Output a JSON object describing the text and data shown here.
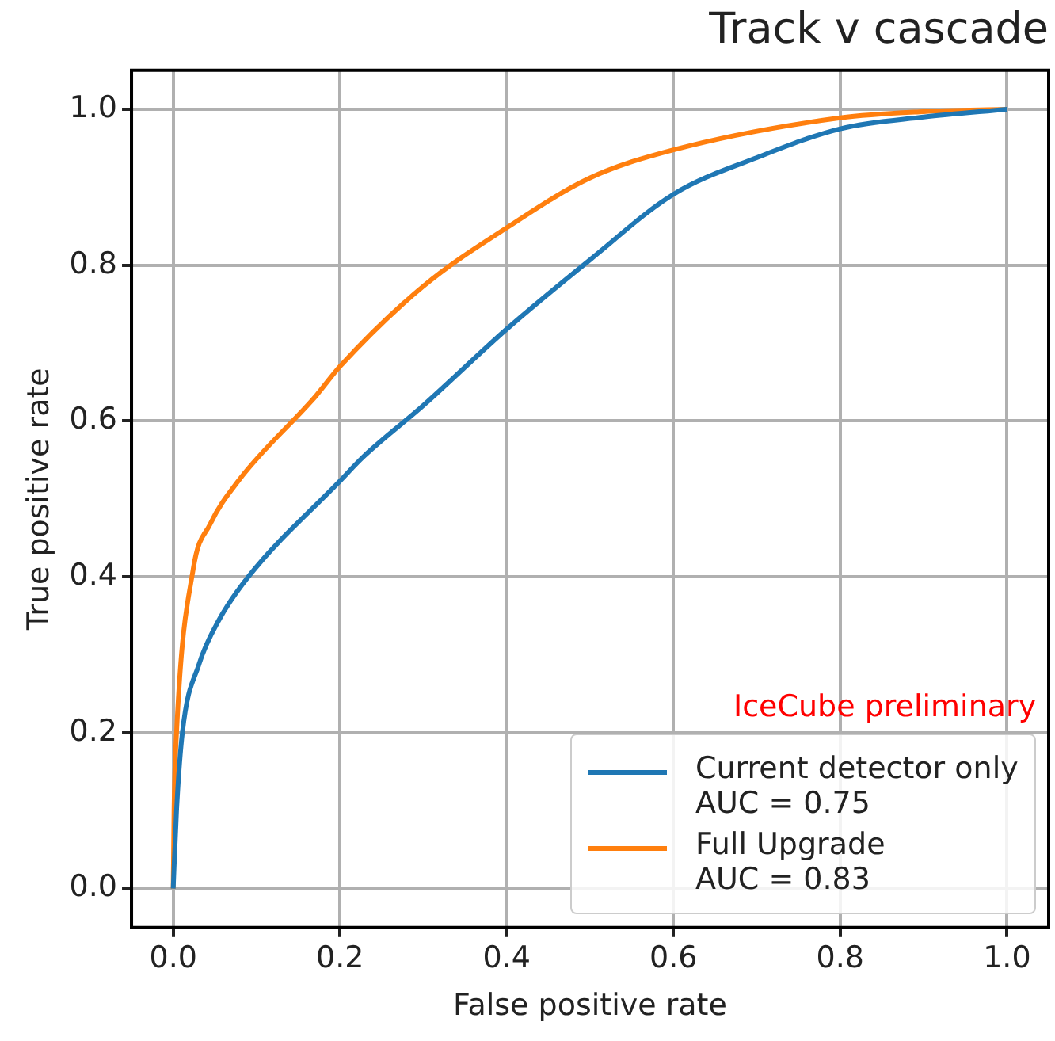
{
  "chart_data": {
    "type": "line",
    "title": "Track v cascade",
    "xlabel": "False positive rate",
    "ylabel": "True positive rate",
    "xlim": [
      -0.05,
      1.05
    ],
    "ylim": [
      -0.05,
      1.05
    ],
    "xticks": [
      {
        "value": 0,
        "label": "0.0"
      },
      {
        "value": 0.2,
        "label": "0.2"
      },
      {
        "value": 0.4,
        "label": "0.4"
      },
      {
        "value": 0.6,
        "label": "0.6"
      },
      {
        "value": 0.8,
        "label": "0.8"
      },
      {
        "value": 1,
        "label": "1.0"
      }
    ],
    "yticks": [
      {
        "value": 0,
        "label": "0.0"
      },
      {
        "value": 0.2,
        "label": "0.2"
      },
      {
        "value": 0.4,
        "label": "0.4"
      },
      {
        "value": 0.6,
        "label": "0.6"
      },
      {
        "value": 0.8,
        "label": "0.8"
      },
      {
        "value": 1,
        "label": "1.0"
      }
    ],
    "grid": true,
    "legend": "bottom right",
    "marker": "none",
    "line_style": "solid",
    "annotations": [
      "IceCube preliminary"
    ],
    "series": [
      {
        "name": "Current detector only\nAUC = 0.75",
        "color": "#1f77b4",
        "x": [
          0,
          0.004,
          0.011,
          0.031,
          0.054,
          0.09,
          0.2,
          0.228,
          0.3,
          0.4,
          0.5,
          0.6,
          0.7,
          0.8,
          0.9,
          1
        ],
        "values": [
          0,
          0.1,
          0.2,
          0.288,
          0.343,
          0.4,
          0.523,
          0.554,
          0.62,
          0.718,
          0.807,
          0.891,
          0.938,
          0.975,
          0.99,
          1
        ]
      },
      {
        "name": "Full Upgrade\nAUC = 0.83",
        "color": "#ff7f0e",
        "x": [
          0,
          0.001,
          0.004,
          0.024,
          0.044,
          0.078,
          0.171,
          0.2,
          0.3,
          0.4,
          0.5,
          0.6,
          0.8,
          0.9,
          1
        ],
        "values": [
          0,
          0.1,
          0.2,
          0.41,
          0.467,
          0.523,
          0.632,
          0.67,
          0.773,
          0.848,
          0.912,
          0.948,
          0.989,
          0.997,
          1
        ]
      }
    ]
  }
}
